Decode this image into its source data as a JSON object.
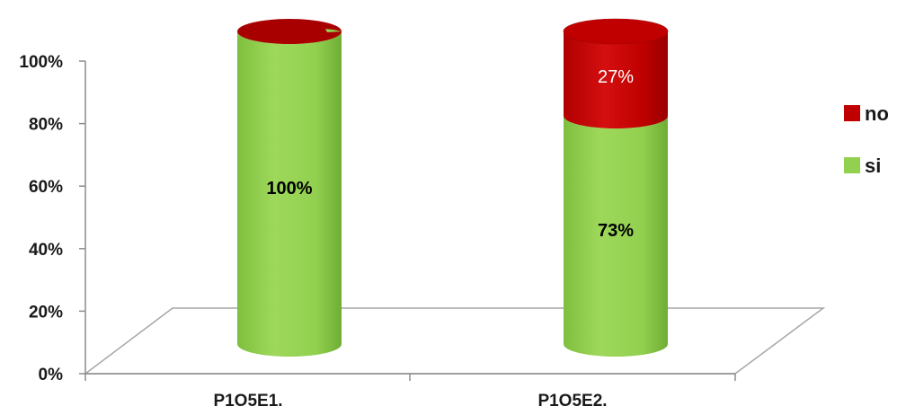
{
  "chart_data": {
    "type": "bar",
    "stacked": true,
    "percent": true,
    "style": "3d-cylinder",
    "categories": [
      "P1O5E1.",
      "P1O5E2."
    ],
    "series": [
      {
        "name": "si",
        "values": [
          100,
          73
        ],
        "labels": [
          "100%",
          "73%"
        ],
        "color": "#92d050"
      },
      {
        "name": "no",
        "values": [
          0,
          27
        ],
        "labels": [
          "",
          "27%"
        ],
        "color": "#c00000"
      }
    ],
    "ylim": [
      0,
      100
    ],
    "yticks": [
      "0%",
      "20%",
      "40%",
      "60%",
      "80%",
      "100%"
    ],
    "legend": {
      "position": "right",
      "order": [
        "no",
        "si"
      ]
    },
    "grid": false
  }
}
